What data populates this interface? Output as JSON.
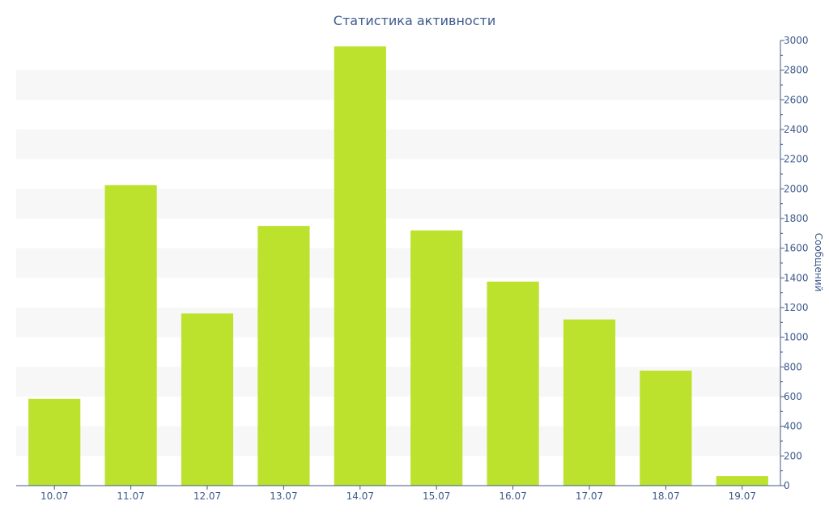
{
  "chart_data": {
    "type": "bar",
    "title": "Статистика активности",
    "categories": [
      "10.07",
      "11.07",
      "12.07",
      "13.07",
      "14.07",
      "15.07",
      "16.07",
      "17.07",
      "18.07",
      "19.07"
    ],
    "values": [
      585,
      2025,
      1160,
      1750,
      2960,
      1720,
      1375,
      1120,
      775,
      65
    ],
    "xlabel": "",
    "ylabel": "Сообщений",
    "ylim": [
      0,
      3000
    ],
    "yticks": [
      "0",
      "200",
      "400",
      "600",
      "800",
      "1000",
      "1200",
      "1400",
      "1600",
      "1800",
      "2000",
      "2200",
      "2400",
      "2600",
      "2800",
      "3000"
    ],
    "y_axis_side": "right",
    "grid": "alternating horizontal bands",
    "legend": "none"
  },
  "colors": {
    "bar": "#bce22e",
    "text": "#3e5a8c",
    "axis": "#3e5a8c",
    "band": "#f7f7f7",
    "background": "#ffffff"
  }
}
